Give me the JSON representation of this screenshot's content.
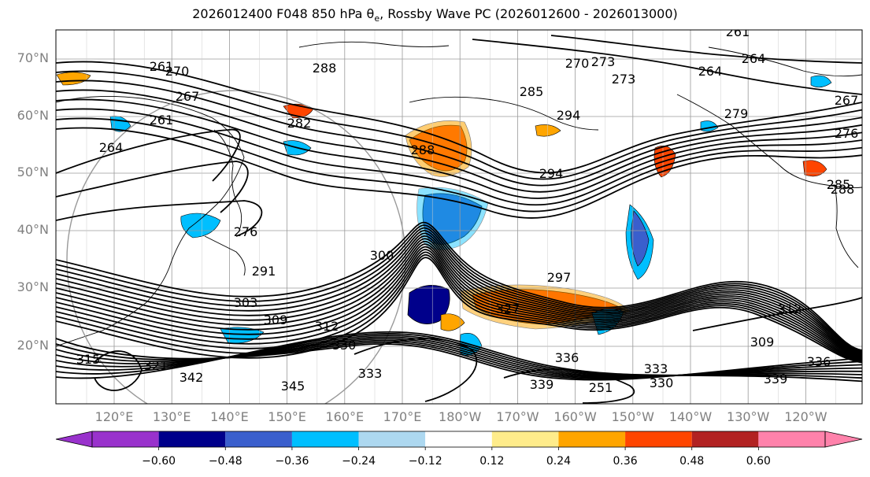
{
  "title_parts": {
    "prefix": "2026012400 F048 850 hPa θ",
    "subscript": "e",
    "suffix": ", Rossby Wave PC (2026012600 - 2026013000)"
  },
  "lat_labels": [
    "70°N",
    "60°N",
    "50°N",
    "40°N",
    "30°N",
    "20°N"
  ],
  "lon_labels": [
    "120°E",
    "130°E",
    "140°E",
    "150°E",
    "160°E",
    "170°E",
    "180°W",
    "170°W",
    "160°W",
    "150°W",
    "140°W",
    "130°W",
    "120°W"
  ],
  "contour_labels": [
    "261",
    "270",
    "288",
    "270",
    "273",
    "264",
    "261",
    "267",
    "261",
    "264",
    "282",
    "285",
    "294",
    "279",
    "267",
    "276",
    "264",
    "288",
    "294",
    "285",
    "288",
    "276",
    "273",
    "291",
    "300",
    "303",
    "297",
    "309",
    "312",
    "309",
    "315",
    "321",
    "336",
    "330",
    "342",
    "345",
    "333",
    "339",
    "330",
    "336",
    "339",
    "333",
    "251",
    "327",
    "312"
  ],
  "colorbar": {
    "ticks": [
      "−0.60",
      "−0.48",
      "−0.36",
      "−0.24",
      "−0.12",
      "0.12",
      "0.24",
      "0.36",
      "0.48",
      "0.60"
    ],
    "colors": [
      "#9932cc",
      "#00008b",
      "#3a5fcd",
      "#00bfff",
      "#add8f0",
      "#ffffff",
      "#ffec8b",
      "#ffa500",
      "#ff4500",
      "#b22222",
      "#ff82ab"
    ]
  },
  "anomaly_colors": {
    "neg_strong": "#00008b",
    "neg_mid": "#3a5fcd",
    "neg": "#00bfff",
    "neg_weak": "#add8f0",
    "pos_weak": "#ffec8b",
    "pos": "#ffa500",
    "pos_mid": "#ff4500",
    "pos_strong": "#b22222"
  }
}
